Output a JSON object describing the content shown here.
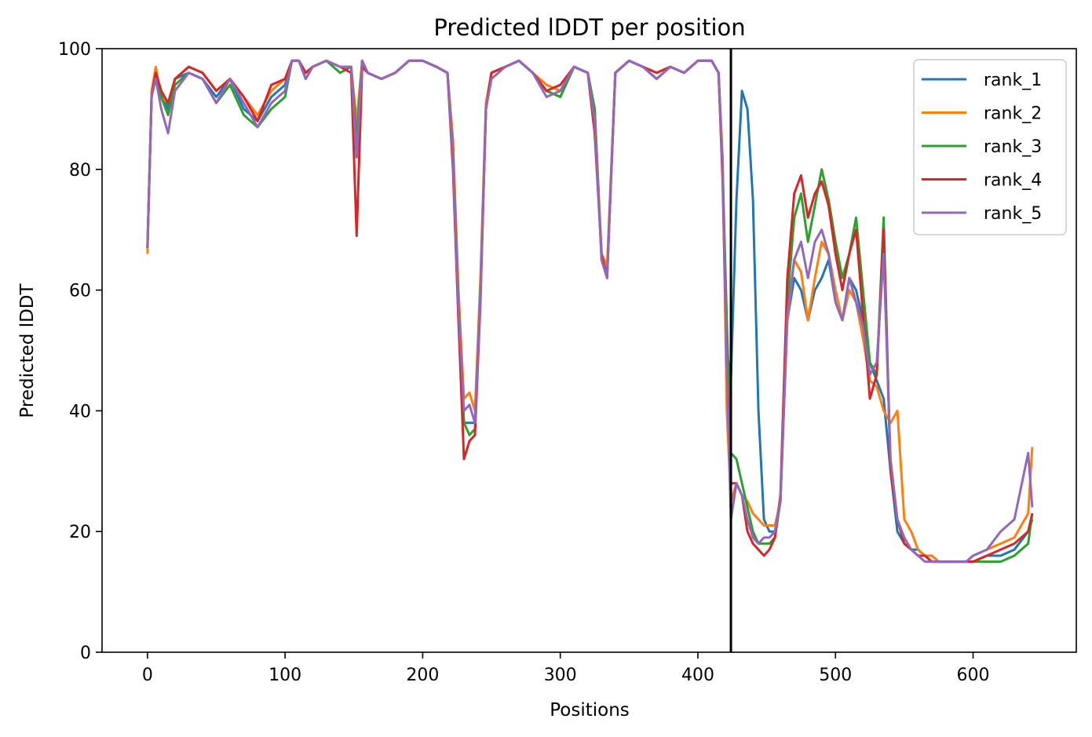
{
  "chart_data": {
    "type": "line",
    "title": "Predicted lDDT per position",
    "xlabel": "Positions",
    "ylabel": "Predicted lDDT",
    "xlim": [
      -33,
      675
    ],
    "ylim": [
      0,
      100
    ],
    "xticks": [
      0,
      100,
      200,
      300,
      400,
      500,
      600
    ],
    "yticks": [
      0,
      20,
      40,
      60,
      80,
      100
    ],
    "grid": false,
    "legend_position": "top-right",
    "vline": 424,
    "colors": [
      "#1f77b4",
      "#ff7f0e",
      "#2ca02c",
      "#d62728",
      "#9467bd"
    ],
    "series": [
      {
        "name": "rank_1",
        "x": [
          0,
          3,
          6,
          10,
          15,
          20,
          30,
          40,
          50,
          60,
          70,
          80,
          90,
          100,
          105,
          110,
          115,
          120,
          130,
          140,
          148,
          152,
          156,
          160,
          170,
          180,
          190,
          200,
          210,
          218,
          222,
          226,
          230,
          234,
          238,
          242,
          246,
          250,
          260,
          270,
          280,
          290,
          300,
          310,
          320,
          325,
          330,
          334,
          340,
          350,
          360,
          370,
          380,
          390,
          400,
          410,
          415,
          418,
          421,
          424,
          428,
          432,
          436,
          440,
          444,
          448,
          452,
          456,
          460,
          465,
          470,
          475,
          480,
          485,
          490,
          495,
          500,
          505,
          510,
          515,
          520,
          525,
          530,
          535,
          540,
          545,
          550,
          555,
          560,
          565,
          570,
          575,
          580,
          585,
          590,
          595,
          600,
          610,
          620,
          630,
          640,
          643
        ],
        "y": [
          67,
          92,
          96,
          93,
          90,
          95,
          96,
          95,
          92,
          95,
          90,
          88,
          92,
          94,
          98,
          98,
          96,
          97,
          98,
          97,
          97,
          82,
          98,
          96,
          95,
          96,
          98,
          98,
          97,
          96,
          83,
          55,
          38,
          38,
          38,
          60,
          90,
          96,
          97,
          98,
          96,
          93,
          92,
          97,
          96,
          90,
          65,
          63,
          96,
          98,
          97,
          95,
          97,
          96,
          98,
          98,
          96,
          80,
          50,
          45,
          75,
          93,
          90,
          75,
          40,
          22,
          20,
          20,
          25,
          55,
          62,
          60,
          55,
          60,
          62,
          65,
          58,
          55,
          62,
          60,
          55,
          48,
          45,
          42,
          30,
          20,
          18,
          17,
          17,
          16,
          16,
          15,
          15,
          15,
          15,
          15,
          15,
          16,
          16,
          17,
          20,
          22
        ]
      },
      {
        "name": "rank_2",
        "x": [
          0,
          3,
          6,
          10,
          15,
          20,
          30,
          40,
          50,
          60,
          70,
          80,
          90,
          100,
          105,
          110,
          115,
          120,
          130,
          140,
          148,
          152,
          156,
          160,
          170,
          180,
          190,
          200,
          210,
          218,
          222,
          226,
          230,
          234,
          238,
          242,
          246,
          250,
          260,
          270,
          280,
          290,
          300,
          310,
          320,
          325,
          330,
          334,
          340,
          350,
          360,
          370,
          380,
          390,
          400,
          410,
          415,
          418,
          421,
          424,
          428,
          432,
          436,
          440,
          444,
          448,
          452,
          456,
          460,
          465,
          470,
          475,
          480,
          485,
          490,
          495,
          500,
          505,
          510,
          515,
          520,
          525,
          530,
          535,
          540,
          545,
          550,
          555,
          560,
          565,
          570,
          575,
          580,
          585,
          590,
          595,
          600,
          610,
          620,
          630,
          640,
          643
        ],
        "y": [
          66,
          93,
          97,
          92,
          91,
          95,
          97,
          96,
          93,
          95,
          92,
          89,
          93,
          95,
          98,
          98,
          96,
          97,
          98,
          97,
          97,
          88,
          98,
          96,
          95,
          96,
          98,
          98,
          97,
          96,
          85,
          60,
          42,
          43,
          40,
          62,
          91,
          96,
          97,
          98,
          96,
          94,
          93,
          97,
          96,
          90,
          66,
          64,
          96,
          98,
          97,
          96,
          97,
          96,
          98,
          98,
          96,
          82,
          40,
          25,
          28,
          26,
          25,
          23,
          22,
          21,
          21,
          21,
          25,
          55,
          65,
          63,
          55,
          62,
          68,
          66,
          60,
          55,
          60,
          58,
          52,
          45,
          44,
          40,
          38,
          40,
          22,
          20,
          17,
          16,
          16,
          15,
          15,
          15,
          15,
          15,
          16,
          17,
          18,
          19,
          23,
          34
        ]
      },
      {
        "name": "rank_3",
        "x": [
          0,
          3,
          6,
          10,
          15,
          20,
          30,
          40,
          50,
          60,
          70,
          80,
          90,
          100,
          105,
          110,
          115,
          120,
          130,
          140,
          148,
          152,
          156,
          160,
          170,
          180,
          190,
          200,
          210,
          218,
          222,
          226,
          230,
          234,
          238,
          242,
          246,
          250,
          260,
          270,
          280,
          290,
          300,
          310,
          320,
          325,
          330,
          334,
          340,
          350,
          360,
          370,
          380,
          390,
          400,
          410,
          415,
          418,
          421,
          424,
          428,
          432,
          436,
          440,
          444,
          448,
          452,
          456,
          460,
          465,
          470,
          475,
          480,
          485,
          490,
          495,
          500,
          505,
          510,
          515,
          520,
          525,
          530,
          535,
          540,
          545,
          550,
          555,
          560,
          565,
          570,
          575,
          580,
          585,
          590,
          595,
          600,
          610,
          620,
          630,
          640,
          643
        ],
        "y": [
          67,
          92,
          96,
          92,
          89,
          94,
          96,
          95,
          91,
          94,
          89,
          87,
          90,
          92,
          98,
          98,
          95,
          97,
          98,
          96,
          97,
          85,
          98,
          96,
          95,
          96,
          98,
          98,
          97,
          96,
          83,
          58,
          38,
          36,
          37,
          60,
          90,
          96,
          97,
          98,
          96,
          93,
          92,
          97,
          96,
          90,
          65,
          62,
          96,
          98,
          97,
          95,
          97,
          96,
          98,
          98,
          96,
          80,
          55,
          33,
          32,
          28,
          24,
          20,
          18,
          18,
          18,
          19,
          25,
          58,
          72,
          76,
          68,
          74,
          80,
          75,
          68,
          62,
          66,
          72,
          60,
          48,
          46,
          72,
          30,
          22,
          18,
          17,
          16,
          16,
          15,
          15,
          15,
          15,
          15,
          15,
          15,
          15,
          15,
          16,
          18,
          23
        ]
      },
      {
        "name": "rank_4",
        "x": [
          0,
          3,
          6,
          10,
          15,
          20,
          30,
          40,
          50,
          60,
          70,
          80,
          90,
          100,
          105,
          110,
          115,
          120,
          130,
          140,
          148,
          152,
          156,
          160,
          170,
          180,
          190,
          200,
          210,
          218,
          222,
          226,
          230,
          234,
          238,
          242,
          246,
          250,
          260,
          270,
          280,
          290,
          300,
          310,
          320,
          325,
          330,
          334,
          340,
          350,
          360,
          370,
          380,
          390,
          400,
          410,
          415,
          418,
          421,
          424,
          428,
          432,
          436,
          440,
          444,
          448,
          452,
          456,
          460,
          465,
          470,
          475,
          480,
          485,
          490,
          495,
          500,
          505,
          510,
          515,
          520,
          525,
          530,
          535,
          540,
          545,
          550,
          555,
          560,
          565,
          570,
          575,
          580,
          585,
          590,
          595,
          600,
          610,
          620,
          630,
          640,
          643
        ],
        "y": [
          67,
          92,
          96,
          93,
          91,
          95,
          97,
          96,
          93,
          95,
          92,
          88,
          94,
          95,
          98,
          98,
          96,
          97,
          98,
          97,
          96,
          69,
          97,
          96,
          95,
          96,
          98,
          98,
          97,
          96,
          80,
          55,
          32,
          35,
          36,
          58,
          90,
          96,
          97,
          98,
          96,
          93,
          94,
          97,
          96,
          86,
          66,
          62,
          96,
          98,
          97,
          96,
          97,
          96,
          98,
          98,
          96,
          78,
          48,
          28,
          28,
          26,
          20,
          18,
          17,
          16,
          17,
          19,
          26,
          62,
          76,
          79,
          72,
          76,
          78,
          74,
          66,
          60,
          66,
          70,
          56,
          42,
          46,
          70,
          30,
          22,
          18,
          17,
          16,
          16,
          15,
          15,
          15,
          15,
          15,
          15,
          15,
          16,
          17,
          18,
          20,
          23
        ]
      },
      {
        "name": "rank_5",
        "x": [
          0,
          3,
          6,
          10,
          15,
          20,
          30,
          40,
          50,
          60,
          70,
          80,
          90,
          100,
          105,
          110,
          115,
          120,
          130,
          140,
          148,
          152,
          156,
          160,
          170,
          180,
          190,
          200,
          210,
          218,
          222,
          226,
          230,
          234,
          238,
          242,
          246,
          250,
          260,
          270,
          280,
          290,
          300,
          310,
          320,
          325,
          330,
          334,
          340,
          350,
          360,
          370,
          380,
          390,
          400,
          410,
          415,
          418,
          421,
          424,
          428,
          432,
          436,
          440,
          444,
          448,
          452,
          456,
          460,
          465,
          470,
          475,
          480,
          485,
          490,
          495,
          500,
          505,
          510,
          515,
          520,
          525,
          530,
          535,
          540,
          545,
          550,
          555,
          560,
          565,
          570,
          575,
          580,
          585,
          590,
          595,
          600,
          610,
          620,
          630,
          640,
          643
        ],
        "y": [
          67,
          92,
          95,
          90,
          86,
          93,
          96,
          95,
          91,
          95,
          91,
          87,
          91,
          93,
          98,
          98,
          95,
          97,
          98,
          97,
          97,
          82,
          98,
          96,
          95,
          96,
          98,
          98,
          97,
          96,
          82,
          57,
          40,
          41,
          38,
          59,
          90,
          95,
          97,
          98,
          96,
          92,
          93,
          97,
          96,
          88,
          65,
          62,
          96,
          98,
          97,
          95,
          97,
          96,
          98,
          98,
          96,
          80,
          48,
          22,
          28,
          26,
          22,
          19,
          18,
          19,
          19,
          20,
          25,
          56,
          65,
          68,
          62,
          68,
          70,
          66,
          58,
          55,
          62,
          58,
          54,
          46,
          48,
          66,
          32,
          22,
          19,
          17,
          16,
          15,
          15,
          15,
          15,
          15,
          15,
          15,
          16,
          17,
          20,
          22,
          33,
          24
        ]
      }
    ]
  }
}
